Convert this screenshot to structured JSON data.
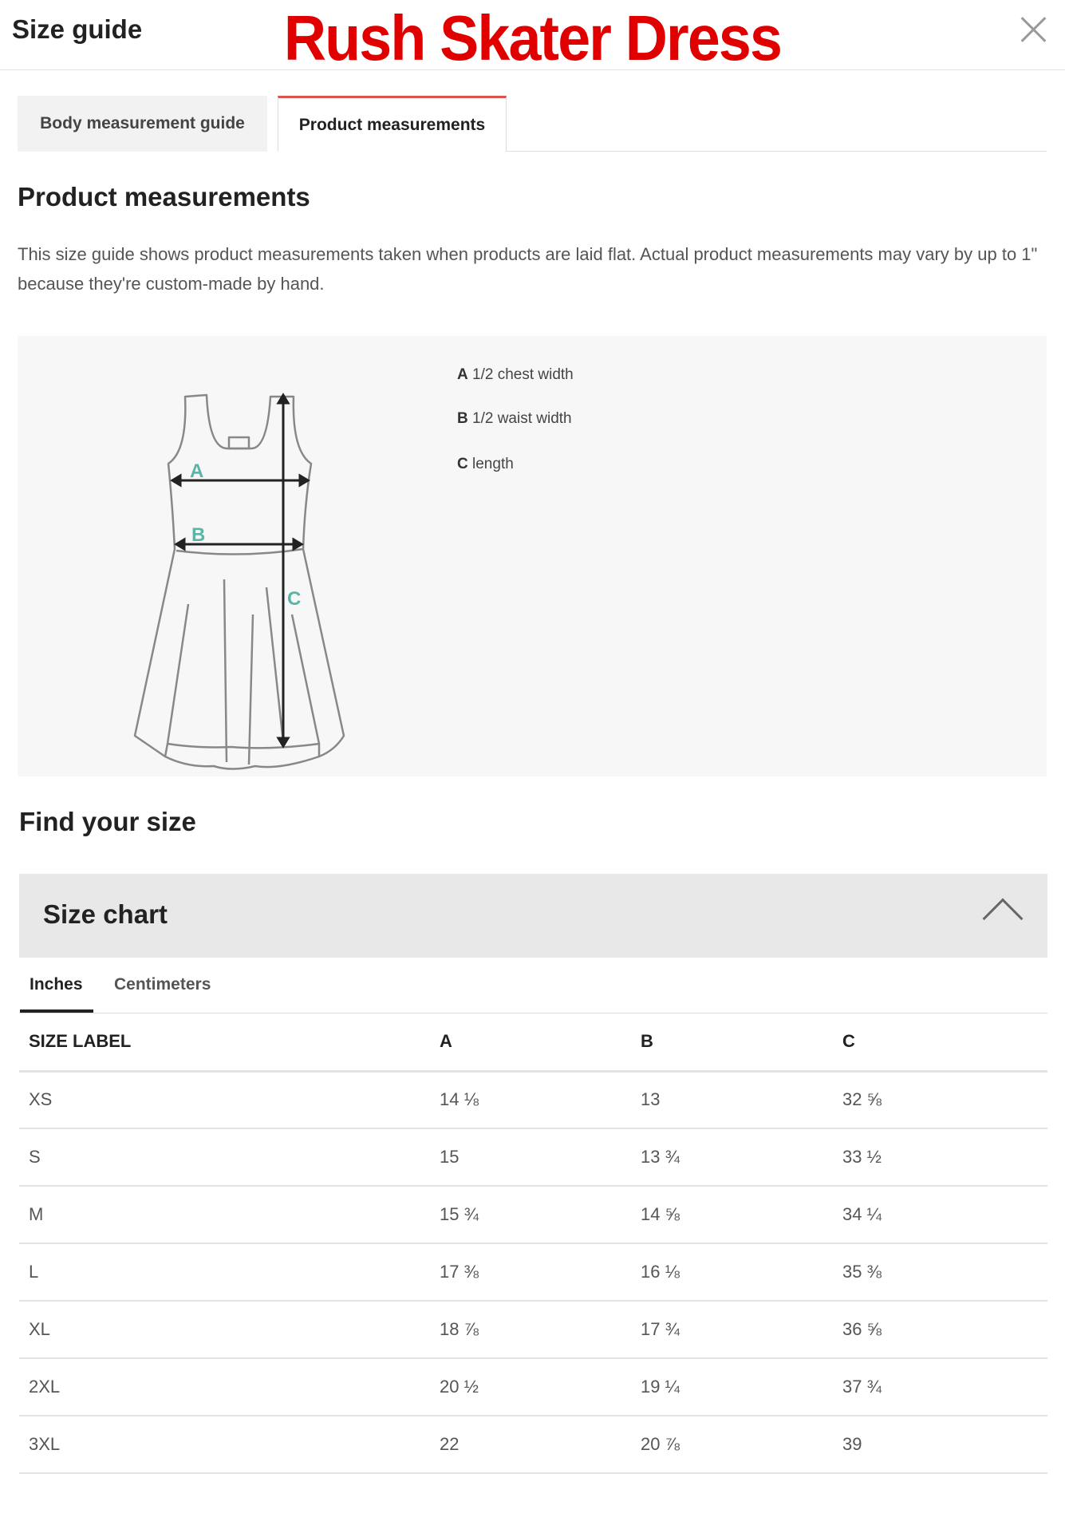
{
  "header": {
    "title": "Size guide",
    "product_name": "Rush Skater Dress",
    "close_icon": "close-icon"
  },
  "tabs": [
    {
      "label": "Body measurement guide",
      "active": false
    },
    {
      "label": "Product measurements",
      "active": true
    }
  ],
  "accent_color": "#d9534f",
  "section": {
    "title": "Product measurements",
    "description": "This size guide shows product measurements taken when products are laid flat. Actual product measurements may vary by up to 1\" because they're custom-made by hand."
  },
  "diagram": {
    "labels": [
      "A",
      "B",
      "C"
    ],
    "legend": [
      {
        "key": "A",
        "text": "1/2 chest width"
      },
      {
        "key": "B",
        "text": "1/2 waist width"
      },
      {
        "key": "C",
        "text": "length"
      }
    ]
  },
  "find": {
    "title": "Find your size"
  },
  "size_chart": {
    "title": "Size chart",
    "expanded": true,
    "units": [
      {
        "label": "Inches",
        "active": true
      },
      {
        "label": "Centimeters",
        "active": false
      }
    ],
    "columns": [
      "SIZE LABEL",
      "A",
      "B",
      "C"
    ],
    "rows": [
      [
        "XS",
        "14 ⅛",
        "13",
        "32 ⅝"
      ],
      [
        "S",
        "15",
        "13 ¾",
        "33 ½"
      ],
      [
        "M",
        "15 ¾",
        "14 ⅝",
        "34 ¼"
      ],
      [
        "L",
        "17 ⅜",
        "16 ⅛",
        "35 ⅜"
      ],
      [
        "XL",
        "18 ⅞",
        "17 ¾",
        "36 ⅝"
      ],
      [
        "2XL",
        "20 ½",
        "19 ¼",
        "37 ¾"
      ],
      [
        "3XL",
        "22",
        "20 ⅞",
        "39"
      ]
    ]
  }
}
